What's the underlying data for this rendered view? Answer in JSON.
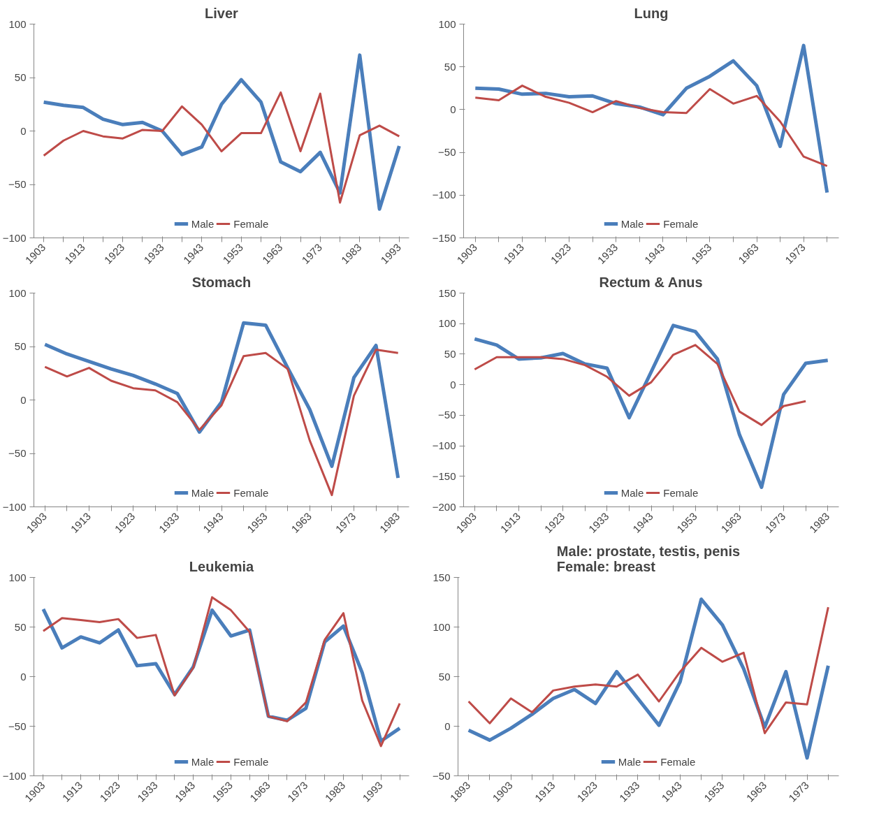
{
  "chart_data": [
    {
      "type": "line",
      "title": "Liver",
      "categories": [
        "1903",
        null,
        "1913",
        null,
        "1923",
        null,
        "1933",
        null,
        "1943",
        null,
        "1953",
        null,
        "1963",
        null,
        "1973",
        null,
        "1983",
        null,
        "1993"
      ],
      "ylim": [
        -100,
        100
      ],
      "yticks": [
        -100,
        -50,
        0,
        50,
        100
      ],
      "legend": "bottom",
      "series": [
        {
          "name": "Male",
          "color": "#4a7ebb",
          "values": [
            27,
            24,
            22,
            11,
            6,
            8,
            0,
            -22,
            -15,
            25,
            48,
            27,
            -29,
            -38,
            -20,
            -58,
            71,
            -73,
            -14
          ]
        },
        {
          "name": "Female",
          "color": "#be4b48",
          "values": [
            -23,
            -9,
            0,
            -5,
            -7,
            1,
            0,
            23,
            6,
            -19,
            -2,
            -2,
            36,
            -19,
            35,
            -67,
            -4,
            5,
            -5
          ]
        }
      ]
    },
    {
      "type": "line",
      "title": "Lung",
      "categories": [
        "1903",
        null,
        "1913",
        null,
        "1923",
        null,
        "1933",
        null,
        "1943",
        null,
        "1953",
        null,
        "1963",
        null,
        "1973",
        null
      ],
      "ylim": [
        -150,
        100
      ],
      "yticks": [
        -150,
        -100,
        -50,
        0,
        50,
        100
      ],
      "legend": "bottom",
      "series": [
        {
          "name": "Male",
          "color": "#4a7ebb",
          "values": [
            25,
            24,
            18,
            19,
            15,
            16,
            7,
            3,
            -6,
            25,
            39,
            57,
            28,
            -43,
            75,
            -97
          ]
        },
        {
          "name": "Female",
          "color": "#be4b48",
          "values": [
            14,
            11,
            28,
            15,
            8,
            -3,
            10,
            2,
            -3,
            -4,
            24,
            7,
            16,
            -14,
            -55,
            -66
          ]
        }
      ]
    },
    {
      "type": "line",
      "title": "Stomach",
      "categories": [
        "1903",
        null,
        "1913",
        null,
        "1923",
        null,
        "1933",
        null,
        "1943",
        null,
        "1953",
        null,
        "1963",
        null,
        "1973",
        null,
        "1983"
      ],
      "ylim": [
        -100,
        100
      ],
      "yticks": [
        -100,
        -50,
        0,
        50,
        100
      ],
      "legend": "bottom",
      "series": [
        {
          "name": "Male",
          "color": "#4a7ebb",
          "values": [
            52,
            43,
            36,
            29,
            23,
            15,
            6,
            -30,
            -2,
            72,
            70,
            30,
            -9,
            -62,
            21,
            51,
            -73
          ]
        },
        {
          "name": "Female",
          "color": "#be4b48",
          "values": [
            31,
            22,
            30,
            18,
            11,
            9,
            -2,
            -28,
            -5,
            41,
            44,
            29,
            -38,
            -89,
            4,
            47,
            44
          ]
        }
      ]
    },
    {
      "type": "line",
      "title": "Rectum & Anus",
      "categories": [
        "1903",
        null,
        "1913",
        null,
        "1923",
        null,
        "1933",
        null,
        "1943",
        null,
        "1953",
        null,
        "1963",
        null,
        "1973",
        null,
        "1983"
      ],
      "ylim": [
        -200,
        150
      ],
      "yticks": [
        -200,
        -150,
        -100,
        -50,
        0,
        50,
        100,
        150
      ],
      "legend": "bottom",
      "series": [
        {
          "name": "Male",
          "color": "#4a7ebb",
          "values": [
            75,
            65,
            42,
            44,
            51,
            34,
            27,
            -54,
            21,
            97,
            87,
            42,
            -82,
            -168,
            -16,
            35,
            40
          ]
        },
        {
          "name": "Female",
          "color": "#be4b48",
          "values": [
            25,
            45,
            45,
            45,
            42,
            32,
            13,
            -18,
            4,
            49,
            65,
            34,
            -44,
            -66,
            -35,
            -27,
            null
          ]
        }
      ]
    },
    {
      "type": "line",
      "title": "Leukemia",
      "categories": [
        "1903",
        null,
        "1913",
        null,
        "1923",
        null,
        "1933",
        null,
        "1943",
        null,
        "1953",
        null,
        "1963",
        null,
        "1973",
        null,
        "1983",
        null,
        "1993",
        null
      ],
      "ylim": [
        -100,
        100
      ],
      "yticks": [
        -100,
        -50,
        0,
        50,
        100
      ],
      "legend": "bottom",
      "series": [
        {
          "name": "Male",
          "color": "#4a7ebb",
          "values": [
            68,
            29,
            40,
            34,
            47,
            11,
            13,
            -18,
            10,
            67,
            41,
            47,
            -40,
            -44,
            -32,
            35,
            51,
            4,
            -65,
            -52
          ]
        },
        {
          "name": "Female",
          "color": "#be4b48",
          "values": [
            46,
            59,
            57,
            55,
            58,
            39,
            42,
            -19,
            9,
            80,
            67,
            45,
            -40,
            -45,
            -26,
            37,
            64,
            -24,
            -70,
            -27
          ]
        }
      ]
    },
    {
      "type": "line",
      "title": "Male: prostate, testis, penis\nFemale: breast",
      "categories": [
        "1893",
        null,
        "1903",
        null,
        "1913",
        null,
        "1923",
        null,
        "1933",
        null,
        "1943",
        null,
        "1953",
        null,
        "1963",
        null,
        "1973",
        null
      ],
      "ylim": [
        -50,
        150
      ],
      "yticks": [
        -50,
        0,
        50,
        100,
        150
      ],
      "legend": "bottom",
      "series": [
        {
          "name": "Male",
          "color": "#4a7ebb",
          "values": [
            -4,
            -14,
            -2,
            12,
            28,
            37,
            23,
            55,
            28,
            1,
            45,
            128,
            102,
            58,
            -1,
            55,
            -32,
            61
          ]
        },
        {
          "name": "Female",
          "color": "#be4b48",
          "values": [
            25,
            3,
            28,
            14,
            36,
            40,
            42,
            40,
            52,
            25,
            55,
            79,
            65,
            74,
            -7,
            24,
            22,
            120
          ]
        }
      ]
    }
  ]
}
